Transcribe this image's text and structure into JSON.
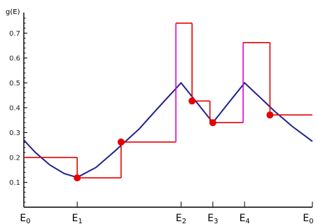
{
  "chart_data": {
    "type": "line",
    "ylabel": "g(E)",
    "xlim": [
      0,
      1
    ],
    "ylim": [
      0,
      0.76
    ],
    "yticks_major": [
      0.1,
      0.2,
      0.3,
      0.4,
      0.5,
      0.6,
      0.7
    ],
    "yticks_minor_step": 0.02,
    "xticks": [
      {
        "value": 0.0,
        "label": "E",
        "sub": "0"
      },
      {
        "value": 0.185,
        "label": "E",
        "sub": "1"
      },
      {
        "value": 0.545,
        "label": "E",
        "sub": "2"
      },
      {
        "value": 0.655,
        "label": "E",
        "sub": "3"
      },
      {
        "value": 0.765,
        "label": "E",
        "sub": "4"
      },
      {
        "value": 1.0,
        "label": "E",
        "sub": "0"
      }
    ],
    "curve": {
      "color": "#1f1f8f",
      "points": [
        [
          0.0,
          0.27
        ],
        [
          0.04,
          0.22
        ],
        [
          0.09,
          0.17
        ],
        [
          0.14,
          0.135
        ],
        [
          0.185,
          0.12
        ],
        [
          0.25,
          0.16
        ],
        [
          0.32,
          0.23
        ],
        [
          0.4,
          0.315
        ],
        [
          0.47,
          0.405
        ],
        [
          0.545,
          0.5
        ],
        [
          0.6,
          0.42
        ],
        [
          0.655,
          0.34
        ],
        [
          0.71,
          0.42
        ],
        [
          0.765,
          0.5
        ],
        [
          0.82,
          0.44
        ],
        [
          0.87,
          0.385
        ],
        [
          0.93,
          0.325
        ],
        [
          1.0,
          0.265
        ]
      ]
    },
    "step": {
      "color": "#e60000",
      "highlight_color": "#e000e0",
      "segments": [
        {
          "x0": 0.0,
          "x1": 0.185,
          "y": 0.2
        },
        {
          "x0": 0.185,
          "x1": 0.337,
          "y": 0.118
        },
        {
          "x0": 0.337,
          "x1": 0.527,
          "y": 0.262
        },
        {
          "x0": 0.527,
          "x1": 0.583,
          "y": 0.74
        },
        {
          "x0": 0.583,
          "x1": 0.645,
          "y": 0.427
        },
        {
          "x0": 0.645,
          "x1": 0.76,
          "y": 0.34
        },
        {
          "x0": 0.76,
          "x1": 0.853,
          "y": 0.662
        },
        {
          "x0": 0.853,
          "x1": 1.0,
          "y": 0.371
        }
      ],
      "highlight_jumps": [
        0.527,
        0.76
      ]
    },
    "points": {
      "color": "#e60000",
      "values": [
        [
          0.185,
          0.118
        ],
        [
          0.337,
          0.262
        ],
        [
          0.583,
          0.427
        ],
        [
          0.655,
          0.34
        ],
        [
          0.853,
          0.371
        ]
      ]
    },
    "grid": false,
    "legend": "none"
  }
}
